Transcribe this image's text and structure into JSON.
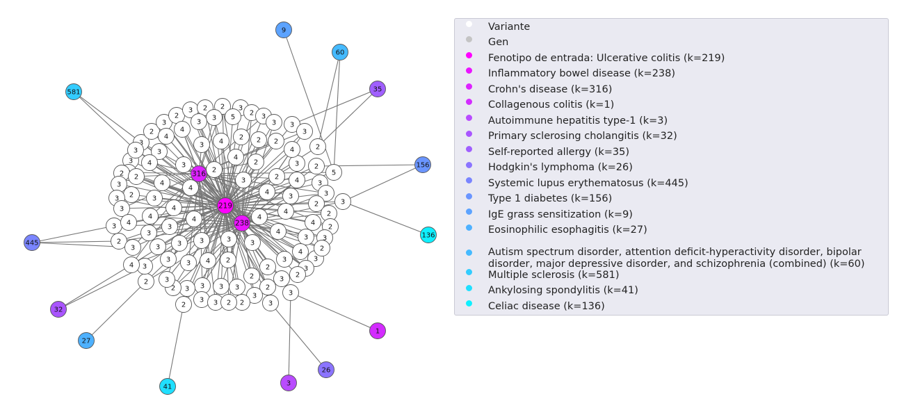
{
  "legend": {
    "items": [
      {
        "label": "Variante",
        "color": "#ffffff"
      },
      {
        "label": "Gen",
        "color": "#c4c4c4"
      },
      {
        "label": "Fenotipo de entrada: Ulcerative colitis (k=219)",
        "color": "#ff00ff"
      },
      {
        "label": "Inflammatory bowel disease (k=238)",
        "color": "#ea15ff"
      },
      {
        "label": "Crohn's disease (k=316)",
        "color": "#dd22ff"
      },
      {
        "label": "Collagenous colitis (k=1)",
        "color": "#d32cff"
      },
      {
        "label": "Autoimmune hepatitis type-1 (k=3)",
        "color": "#b94bff"
      },
      {
        "label": "Primary sclerosing cholangitis (k=32)",
        "color": "#a955ff"
      },
      {
        "label": "Self-reported allergy (k=35)",
        "color": "#a05fff"
      },
      {
        "label": "Hodgkin's lymphoma (k=26)",
        "color": "#8b74ff"
      },
      {
        "label": "Systemic lupus erythematosus (k=445)",
        "color": "#7a85ff"
      },
      {
        "label": "Type 1 diabetes (k=156)",
        "color": "#6a95ff"
      },
      {
        "label": "IgE grass sensitization (k=9)",
        "color": "#5ca3ff"
      },
      {
        "label": "Eosinophilic esophagitis (k=27)",
        "color": "#4eb1ff"
      },
      {
        "label": "Autism spectrum disorder, attention deficit-hyperactivity disorder, bipolar\ndisorder, major depressive disorder, and schizophrenia (combined) (k=60)",
        "color": "#45baff"
      },
      {
        "label": "Multiple sclerosis (k=581)",
        "color": "#33ccff"
      },
      {
        "label": "Ankylosing spondylitis (k=41)",
        "color": "#20dfff"
      },
      {
        "label": "Celiac disease (k=136)",
        "color": "#0ff0ff"
      }
    ]
  },
  "graph": {
    "hubs": [
      {
        "label": "219",
        "color": "#ff00ff"
      },
      {
        "label": "238",
        "color": "#ea15ff"
      },
      {
        "label": "316",
        "color": "#dd22ff"
      }
    ],
    "outer": [
      {
        "label": "9",
        "color": "#5ca3ff"
      },
      {
        "label": "60",
        "color": "#45baff"
      },
      {
        "label": "35",
        "color": "#a05fff"
      },
      {
        "label": "581",
        "color": "#33ccff"
      },
      {
        "label": "156",
        "color": "#6a95ff"
      },
      {
        "label": "136",
        "color": "#0ff0ff"
      },
      {
        "label": "445",
        "color": "#7a85ff"
      },
      {
        "label": "32",
        "color": "#a955ff"
      },
      {
        "label": "1",
        "color": "#d32cff"
      },
      {
        "label": "27",
        "color": "#4eb1ff"
      },
      {
        "label": "26",
        "color": "#8b74ff"
      },
      {
        "label": "41",
        "color": "#20dfff"
      },
      {
        "label": "3",
        "color": "#b94bff"
      }
    ],
    "variant_labels": [
      "3",
      "2",
      "3",
      "2",
      "3",
      "2",
      "2",
      "3",
      "2",
      "3",
      "3",
      "3",
      "3",
      "2",
      "2",
      "5",
      "3",
      "3",
      "3",
      "2",
      "2",
      "2",
      "3",
      "4",
      "4",
      "3",
      "4",
      "2",
      "2",
      "2",
      "3",
      "5",
      "3",
      "4",
      "4",
      "3",
      "4",
      "3",
      "3",
      "2",
      "2",
      "2",
      "2",
      "3",
      "3",
      "3",
      "3",
      "4",
      "4",
      "3",
      "4",
      "4",
      "4",
      "3",
      "3",
      "4",
      "2",
      "2",
      "3",
      "4",
      "4",
      "2",
      "2",
      "3",
      "3",
      "3",
      "4",
      "3",
      "3",
      "3",
      "3",
      "3",
      "4",
      "3",
      "2",
      "3",
      "4",
      "4",
      "3",
      "4",
      "3",
      "3",
      "4",
      "3",
      "3",
      "2",
      "2",
      "2",
      "2",
      "3",
      "2",
      "3",
      "3",
      "2",
      "3",
      "3",
      "3",
      "3",
      "2",
      "3",
      "2",
      "3",
      "4"
    ]
  }
}
